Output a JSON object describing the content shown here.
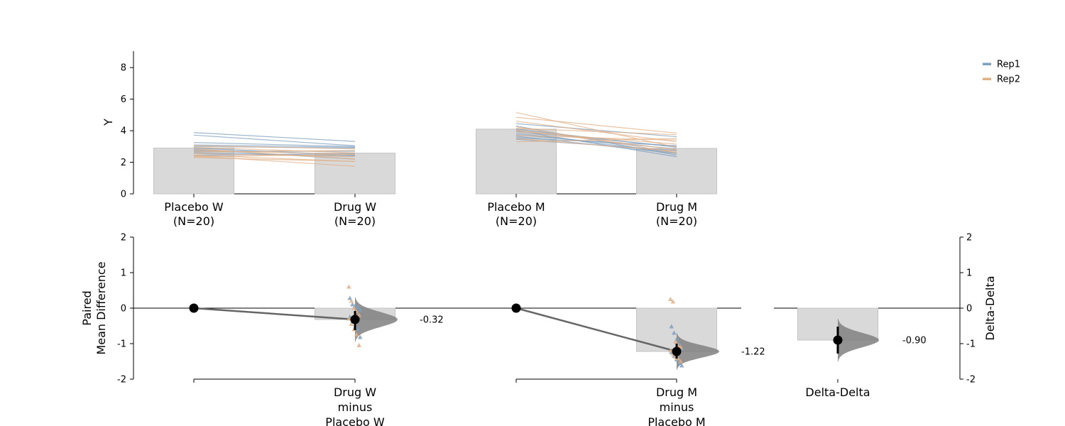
{
  "chart_data": [
    {
      "type": "paired_bar_slopegraph",
      "ylabel": "Y",
      "ylim": [
        0,
        9
      ],
      "yticks": [
        0,
        2,
        4,
        6,
        8
      ],
      "categories": [
        {
          "label": "Placebo W",
          "n_label": "(N=20)",
          "mean": 2.9
        },
        {
          "label": "Drug W",
          "n_label": "(N=20)",
          "mean": 2.58
        },
        {
          "label": "Placebo M",
          "n_label": "(N=20)",
          "mean": 4.1
        },
        {
          "label": "Drug M",
          "n_label": "(N=20)",
          "mean": 2.88
        }
      ],
      "legend": {
        "position": "top-right",
        "entries": [
          {
            "name": "Rep1",
            "color": "#7f9fbd"
          },
          {
            "name": "Rep2",
            "color": "#e0b088"
          }
        ]
      },
      "bar_color": "#d9d9d9",
      "paired_lines": {
        "W": [
          {
            "rep": "Rep1",
            "from": 3.88,
            "to": 3.32
          },
          {
            "rep": "Rep1",
            "from": 3.72,
            "to": 3.05
          },
          {
            "rep": "Rep1",
            "from": 3.25,
            "to": 3.0
          },
          {
            "rep": "Rep1",
            "from": 3.1,
            "to": 2.95
          },
          {
            "rep": "Rep1",
            "from": 3.0,
            "to": 2.9
          },
          {
            "rep": "Rep1",
            "from": 2.9,
            "to": 2.45
          },
          {
            "rep": "Rep1",
            "from": 2.8,
            "to": 2.2
          },
          {
            "rep": "Rep1",
            "from": 2.7,
            "to": 2.7
          },
          {
            "rep": "Rep1",
            "from": 2.6,
            "to": 2.4
          },
          {
            "rep": "Rep1",
            "from": 2.45,
            "to": 2.55
          },
          {
            "rep": "Rep2",
            "from": 3.05,
            "to": 2.85
          },
          {
            "rep": "Rep2",
            "from": 2.95,
            "to": 2.6
          },
          {
            "rep": "Rep2",
            "from": 2.85,
            "to": 2.2
          },
          {
            "rep": "Rep2",
            "from": 2.75,
            "to": 2.5
          },
          {
            "rep": "Rep2",
            "from": 2.65,
            "to": 2.75
          },
          {
            "rep": "Rep2",
            "from": 2.55,
            "to": 2.35
          },
          {
            "rep": "Rep2",
            "from": 2.45,
            "to": 2.05
          },
          {
            "rep": "Rep2",
            "from": 2.4,
            "to": 1.75
          },
          {
            "rep": "Rep2",
            "from": 2.35,
            "to": 2.5
          },
          {
            "rep": "Rep2",
            "from": 2.3,
            "to": 2.05
          }
        ],
        "M": [
          {
            "rep": "Rep1",
            "from": 4.45,
            "to": 3.62
          },
          {
            "rep": "Rep1",
            "from": 4.3,
            "to": 2.45
          },
          {
            "rep": "Rep1",
            "from": 4.1,
            "to": 2.95
          },
          {
            "rep": "Rep1",
            "from": 4.0,
            "to": 2.35
          },
          {
            "rep": "Rep1",
            "from": 3.95,
            "to": 3.0
          },
          {
            "rep": "Rep1",
            "from": 3.85,
            "to": 2.6
          },
          {
            "rep": "Rep1",
            "from": 3.75,
            "to": 2.85
          },
          {
            "rep": "Rep1",
            "from": 3.65,
            "to": 2.55
          },
          {
            "rep": "Rep1",
            "from": 3.55,
            "to": 3.05
          },
          {
            "rep": "Rep1",
            "from": 3.45,
            "to": 2.75
          },
          {
            "rep": "Rep2",
            "from": 5.15,
            "to": 2.95
          },
          {
            "rep": "Rep2",
            "from": 4.85,
            "to": 3.85
          },
          {
            "rep": "Rep2",
            "from": 4.6,
            "to": 3.3
          },
          {
            "rep": "Rep2",
            "from": 4.25,
            "to": 2.6
          },
          {
            "rep": "Rep2",
            "from": 4.15,
            "to": 3.75
          },
          {
            "rep": "Rep2",
            "from": 4.05,
            "to": 2.8
          },
          {
            "rep": "Rep2",
            "from": 3.95,
            "to": 3.15
          },
          {
            "rep": "Rep2",
            "from": 3.7,
            "to": 3.4
          },
          {
            "rep": "Rep2",
            "from": 3.5,
            "to": 2.7
          },
          {
            "rep": "Rep2",
            "from": 3.3,
            "to": 3.5
          }
        ]
      }
    },
    {
      "type": "estimation_plot",
      "ylabel_lines": [
        "Paired",
        "Mean Difference"
      ],
      "ylim": [
        -2,
        2
      ],
      "yticks": [
        -2,
        -1,
        0,
        1,
        2
      ],
      "comparisons": [
        {
          "label_lines": [
            "Drug W",
            "minus",
            "Placebo W"
          ],
          "mean_diff": -0.32,
          "annotation": "-0.32",
          "ci": [
            -0.62,
            -0.08
          ],
          "diffs_rep1": [
            0.28,
            0.1,
            0.06,
            0.02,
            -0.05,
            -0.25,
            -0.38,
            -0.55,
            -0.58,
            -0.82
          ],
          "diffs_rep2": [
            0.6,
            0.2,
            0.0,
            -0.1,
            -0.2,
            -0.3,
            -0.45,
            -0.6,
            -0.75,
            -1.05
          ]
        },
        {
          "label_lines": [
            "Drug M",
            "minus",
            "Placebo M"
          ],
          "mean_diff": -1.22,
          "annotation": "-1.22",
          "ci": [
            -1.42,
            -1.0
          ],
          "diffs_rep1": [
            -0.52,
            -0.7,
            -0.88,
            -1.0,
            -1.15,
            -1.25,
            -1.35,
            -1.45,
            -1.55,
            -1.62
          ],
          "diffs_rep2": [
            0.25,
            0.18,
            -0.95,
            -1.05,
            -1.1,
            -1.2,
            -1.3,
            -1.38,
            -1.42,
            -1.5
          ]
        }
      ],
      "delta_delta": {
        "label": "Delta-Delta",
        "value": -0.9,
        "annotation": "-0.90",
        "ci": [
          -1.28,
          -0.52
        ],
        "ylabel": "Delta-Delta"
      }
    }
  ]
}
